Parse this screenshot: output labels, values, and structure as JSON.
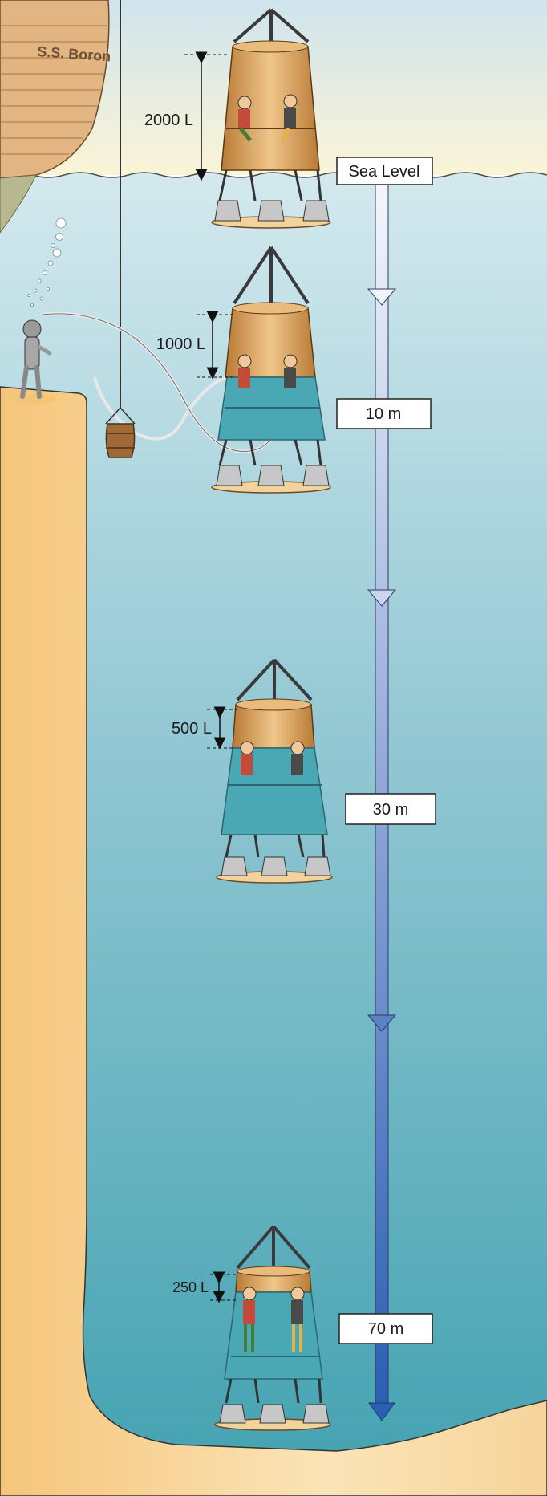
{
  "ship": {
    "name": "S.S. Boron"
  },
  "depth_markers": [
    {
      "label": "Sea Level"
    },
    {
      "label": "10 m"
    },
    {
      "label": "30 m"
    },
    {
      "label": "70 m"
    }
  ],
  "bells": [
    {
      "air_volume_label": "2000 L",
      "depth": "Sea Level"
    },
    {
      "air_volume_label": "1000 L",
      "depth": "10 m"
    },
    {
      "air_volume_label": "500 L",
      "depth": "30 m"
    },
    {
      "air_volume_label": "250 L",
      "depth": "70 m"
    }
  ],
  "colors": {
    "sky": "#fbf4d6",
    "sea_top": "#cfe6ec",
    "sea_bottom": "#4aa6b4",
    "sand": "#f7d193",
    "bell_wood": "#d99a4e",
    "bell_water": "#46a6b2",
    "arrow_top": "#f2f6fb",
    "arrow_bottom": "#2a63b6"
  }
}
